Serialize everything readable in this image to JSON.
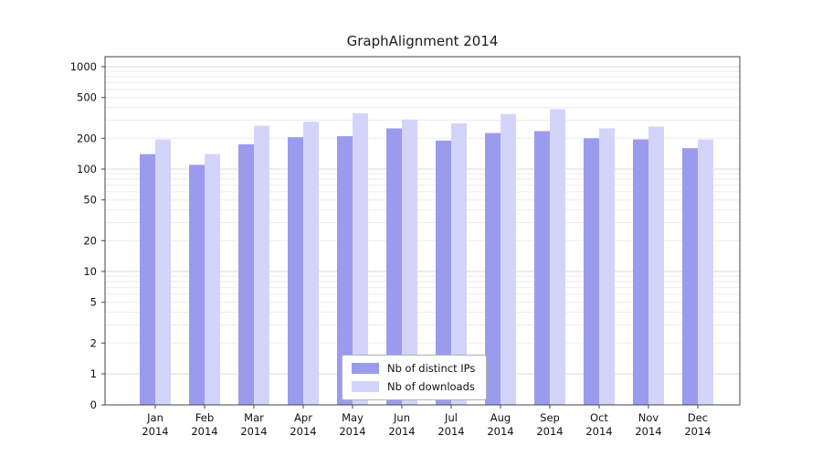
{
  "chart_data": {
    "type": "bar",
    "title": "GraphAlignment 2014",
    "scale": "symlog",
    "grid": true,
    "legend_position": "lower center",
    "year": "2014",
    "categories": [
      "Jan",
      "Feb",
      "Mar",
      "Apr",
      "May",
      "Jun",
      "Jul",
      "Aug",
      "Sep",
      "Oct",
      "Nov",
      "Dec"
    ],
    "series": [
      {
        "name": "Nb of distinct IPs",
        "color": "#9b9bee",
        "values": [
          140,
          110,
          175,
          205,
          210,
          250,
          190,
          225,
          235,
          200,
          195,
          160
        ]
      },
      {
        "name": "Nb of downloads",
        "color": "#d4d4fa",
        "values": [
          195,
          140,
          265,
          290,
          350,
          305,
          280,
          345,
          385,
          250,
          260,
          195
        ]
      }
    ],
    "yticks": [
      0,
      1,
      2,
      5,
      10,
      20,
      50,
      100,
      200,
      500,
      1000
    ],
    "ylim": [
      0,
      1200
    ],
    "xlabel": "",
    "ylabel": "",
    "colors": {
      "axis": "#444444",
      "major_grid": "#d9d9d9",
      "minor_grid": "#ededed",
      "text": "#111111"
    }
  }
}
